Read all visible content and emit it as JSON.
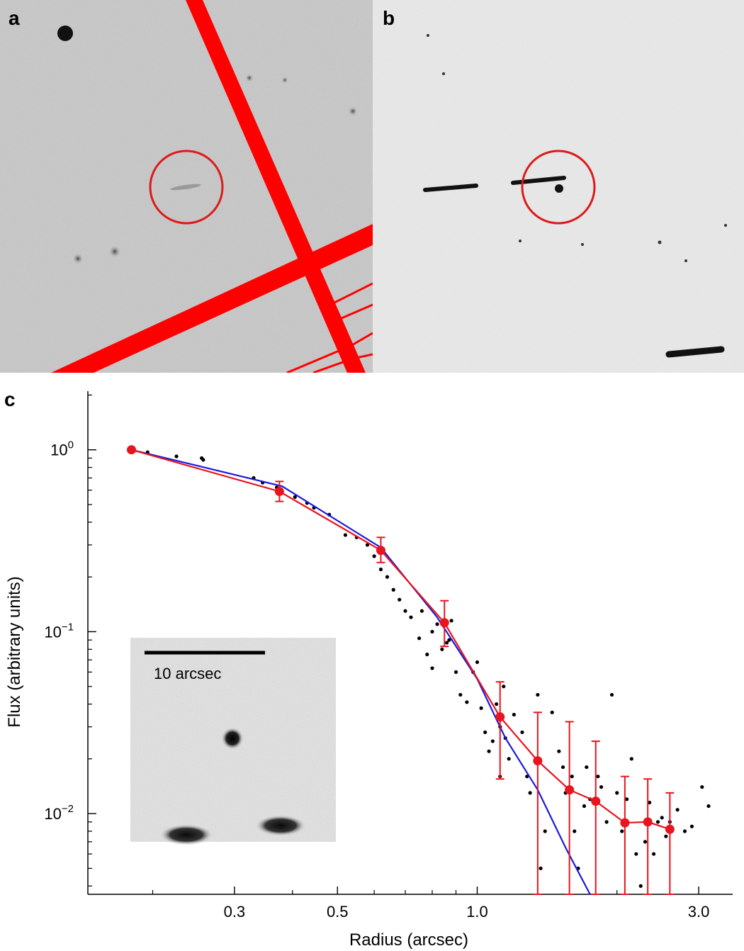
{
  "panels": [
    {
      "letter": "a"
    },
    {
      "letter": "b"
    },
    {
      "letter": "c"
    }
  ],
  "colors": {
    "mask": "#ff0000",
    "circle": "#dd1a1a",
    "binned": "#e8141e",
    "model": "#1a1adc",
    "points": "#000000",
    "sky_a": "#c9c9c9",
    "sky_b": "#ededed"
  },
  "inset": {
    "scale_label": "10 arcsec"
  },
  "chart_data": {
    "type": "scatter",
    "xlabel": "Radius (arcsec)",
    "ylabel": "Flux (arbitrary units)",
    "xscale": "log",
    "yscale": "log",
    "xlim": [
      0.145,
      3.55
    ],
    "ylim": [
      0.0036,
      2.1
    ],
    "x_ticks": [
      {
        "value": 0.3,
        "label": "0.3"
      },
      {
        "value": 0.5,
        "label": "0.5"
      },
      {
        "value": 1.0,
        "label": "1.0"
      },
      {
        "value": 3.0,
        "label": "3.0"
      }
    ],
    "y_ticks": [
      {
        "value": 1,
        "base": "10",
        "exp": "0"
      },
      {
        "value": 0.1,
        "base": "10",
        "exp": "−1"
      },
      {
        "value": 0.01,
        "base": "10",
        "exp": "−2"
      }
    ],
    "binned_profile": {
      "x": [
        0.18,
        0.375,
        0.62,
        0.85,
        1.12,
        1.35,
        1.58,
        1.8,
        2.08,
        2.33,
        2.6
      ],
      "y": [
        1.0,
        0.59,
        0.28,
        0.112,
        0.034,
        0.0195,
        0.0135,
        0.0117,
        0.0089,
        0.009,
        0.0082
      ],
      "err_low": [
        1.0,
        0.52,
        0.24,
        0.083,
        0.0155,
        0.0033,
        0.0035,
        0.0033,
        0.0033,
        0.0033,
        0.0033
      ],
      "err_high": [
        1.0,
        0.67,
        0.33,
        0.148,
        0.053,
        0.036,
        0.032,
        0.025,
        0.016,
        0.0155,
        0.013
      ]
    },
    "model_profile": {
      "x": [
        0.18,
        0.38,
        0.62,
        0.82,
        1.0,
        1.15,
        1.35,
        1.55,
        1.75
      ],
      "y": [
        1.0,
        0.63,
        0.29,
        0.12,
        0.055,
        0.026,
        0.0135,
        0.0065,
        0.0033
      ]
    },
    "points": {
      "x": [
        0.195,
        0.225,
        0.255,
        0.257,
        0.33,
        0.345,
        0.37,
        0.405,
        0.43,
        0.445,
        0.48,
        0.52,
        0.55,
        0.58,
        0.6,
        0.62,
        0.64,
        0.66,
        0.68,
        0.7,
        0.72,
        0.75,
        0.76,
        0.78,
        0.8,
        0.8,
        0.82,
        0.84,
        0.86,
        0.87,
        0.88,
        0.9,
        0.92,
        0.95,
        0.98,
        1.0,
        1.02,
        1.04,
        1.06,
        1.08,
        1.1,
        1.12,
        1.12,
        1.14,
        1.15,
        1.17,
        1.2,
        1.25,
        1.28,
        1.3,
        1.35,
        1.37,
        1.4,
        1.45,
        1.5,
        1.53,
        1.55,
        1.6,
        1.62,
        1.65,
        1.7,
        1.72,
        1.75,
        1.82,
        1.85,
        1.9,
        1.95,
        2.0,
        2.05,
        2.1,
        2.15,
        2.2,
        2.25,
        2.3,
        2.35,
        2.4,
        2.45,
        2.5,
        2.55,
        2.6,
        2.7,
        2.8,
        2.9,
        3.05,
        3.15
      ],
      "y": [
        0.97,
        0.92,
        0.9,
        0.88,
        0.7,
        0.66,
        0.62,
        0.55,
        0.51,
        0.48,
        0.44,
        0.34,
        0.33,
        0.3,
        0.26,
        0.22,
        0.2,
        0.17,
        0.15,
        0.13,
        0.12,
        0.092,
        0.13,
        0.075,
        0.063,
        0.1,
        0.11,
        0.08,
        0.087,
        0.09,
        0.115,
        0.06,
        0.045,
        0.041,
        0.06,
        0.068,
        0.038,
        0.028,
        0.022,
        0.025,
        0.04,
        0.016,
        0.03,
        0.05,
        0.026,
        0.02,
        0.035,
        0.028,
        0.016,
        0.013,
        0.045,
        0.005,
        0.008,
        0.036,
        0.022,
        0.018,
        0.013,
        0.016,
        0.008,
        0.005,
        0.011,
        0.018,
        0.012,
        0.016,
        0.014,
        0.009,
        0.045,
        0.013,
        0.008,
        0.012,
        0.02,
        0.006,
        0.004,
        0.007,
        0.0115,
        0.006,
        0.009,
        0.0095,
        0.0075,
        0.009,
        0.0105,
        0.008,
        0.0085,
        0.014,
        0.011
      ]
    }
  }
}
